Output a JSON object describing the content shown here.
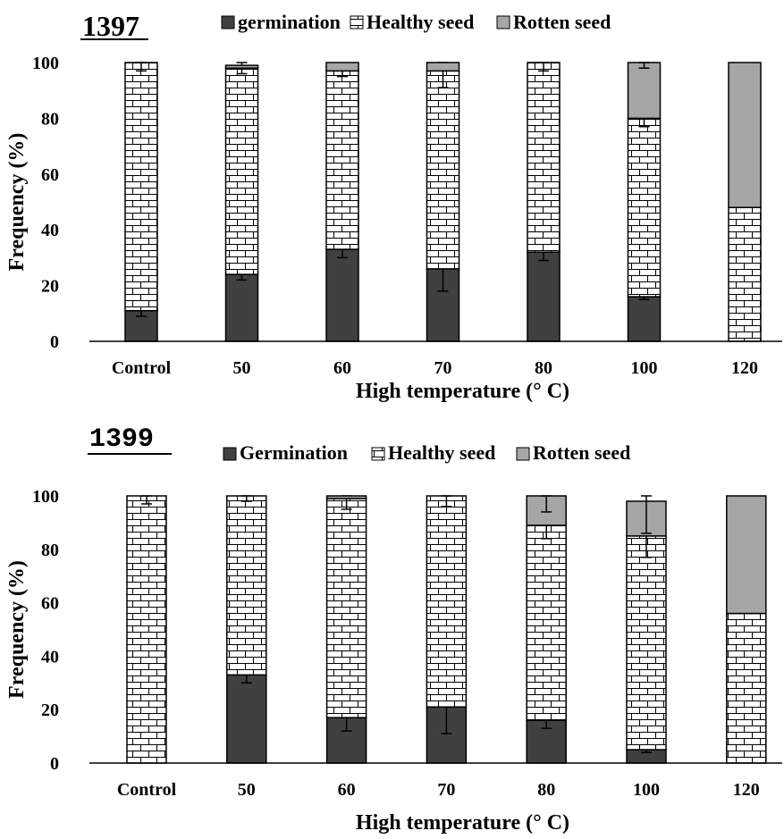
{
  "chart_data": [
    {
      "type": "bar",
      "stacked": true,
      "title": "1397",
      "xlabel": "High temperature (° C)",
      "ylabel": "Frequency (%)",
      "ylim": [
        0,
        100
      ],
      "yticks": [
        "0",
        "20",
        "40",
        "60",
        "80",
        "100"
      ],
      "categories": [
        "Control",
        "50",
        "60",
        "70",
        "80",
        "100",
        "120"
      ],
      "grid": false,
      "legend_position": "top",
      "series": [
        {
          "name": "germination",
          "values": [
            11,
            24,
            33,
            26,
            32,
            16,
            0
          ],
          "errors": [
            2,
            2,
            3,
            8,
            3,
            1,
            0
          ]
        },
        {
          "name": "Healthy seed",
          "values": [
            89,
            74,
            64,
            71,
            68,
            64,
            48
          ],
          "errors": [
            3,
            2,
            2,
            6,
            3,
            3,
            0
          ]
        },
        {
          "name": "Rotten seed",
          "values": [
            0,
            1,
            3,
            3,
            0,
            20,
            52
          ],
          "errors": [
            0,
            0,
            0,
            0,
            0,
            2,
            0
          ]
        }
      ]
    },
    {
      "type": "bar",
      "stacked": true,
      "title": "1399",
      "xlabel": "High temperature (° C)",
      "ylabel": "Frequency (%)",
      "ylim": [
        0,
        100
      ],
      "yticks": [
        "0",
        "20",
        "40",
        "60",
        "80",
        "100"
      ],
      "categories": [
        "Control",
        "50",
        "60",
        "70",
        "80",
        "100",
        "120"
      ],
      "grid": false,
      "legend_position": "top",
      "series": [
        {
          "name": "Germination",
          "values": [
            0,
            33,
            17,
            21,
            16,
            5,
            0
          ],
          "errors": [
            0,
            3,
            5,
            10,
            3,
            1,
            0
          ]
        },
        {
          "name": "Healthy seed",
          "values": [
            100,
            67,
            82,
            79,
            73,
            80,
            56
          ],
          "errors": [
            3,
            2,
            4,
            4,
            5,
            8,
            0
          ]
        },
        {
          "name": "Rotten seed",
          "values": [
            0,
            0,
            1,
            0,
            11,
            13,
            44
          ],
          "errors": [
            0,
            0,
            0,
            0,
            6,
            12,
            0
          ]
        }
      ]
    }
  ],
  "colors": {
    "germination": "#404040",
    "healthy": "#ffffff",
    "rotten": "#a6a6a6",
    "axis": "#000000"
  }
}
